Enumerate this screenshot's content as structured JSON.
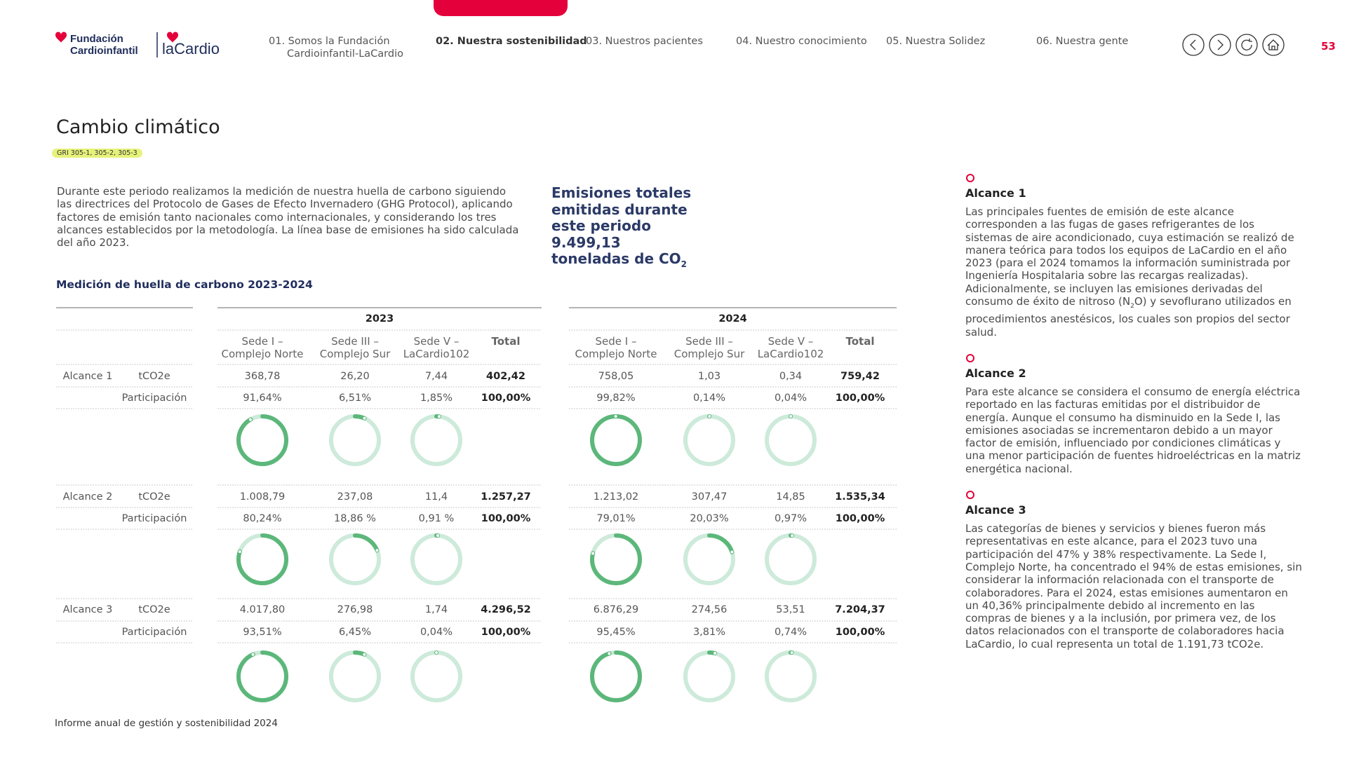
{
  "header": {
    "logo": {
      "line1": "Fundación",
      "line2": "Cardioinfantil",
      "brand": "laCardio"
    },
    "nav": [
      "01. Somos la Fundación Cardioinfantil-LaCardio",
      "02. Nuestra sostenibilidad",
      "03. Nuestros pacientes",
      "04. Nuestro conocimiento",
      "05. Nuestra Solidez",
      "06. Nuestra gente"
    ],
    "active": 1,
    "page_number": "53"
  },
  "title": "Cambio climático",
  "gri": "GRI 305-1, 305-2, 305-3",
  "intro": "Durante este periodo realizamos la medición de nuestra huella de carbono siguiendo las directrices del Protocolo de Gases de Efecto Invernadero (GHG Protocol), aplicando factores de emisión tanto nacionales como internacionales, y considerando los tres alcances establecidos por la metodología. La línea base de emisiones ha sido calculada del año 2023.",
  "highlight": {
    "text": "Emisiones totales emitidas durante este periodo 9.499,13 toneladas de CO",
    "sub": "2"
  },
  "table": {
    "title": "Medición de huella de carbono 2023-2024",
    "years": [
      "2023",
      "2024"
    ],
    "columns": [
      "Sede I – Complejo Norte",
      "Sede III – Complejo Sur",
      "Sede V – LaCardio102",
      "Total"
    ],
    "groups": [
      {
        "scope": "Alcance 1",
        "labels": [
          "tCO2e",
          "Participación"
        ],
        "emissions": [
          [
            "368,78",
            "26,20",
            "7,44",
            "402,42"
          ],
          [
            "758,05",
            "1,03",
            "0,34",
            "759,42"
          ]
        ],
        "shares": [
          [
            "91,64%",
            "6,51%",
            "1,85%",
            "100,00%"
          ],
          [
            "99,82%",
            "0,14%",
            "0,04%",
            "100,00%"
          ]
        ]
      },
      {
        "scope": "Alcance 2",
        "labels": [
          "tCO2e",
          "Participación"
        ],
        "emissions": [
          [
            "1.008,79",
            "237,08",
            "11,4",
            "1.257,27"
          ],
          [
            "1.213,02",
            "307,47",
            "14,85",
            "1.535,34"
          ]
        ],
        "shares": [
          [
            "80,24%",
            "18,86 %",
            "0,91 %",
            "100,00%"
          ],
          [
            "79,01%",
            "20,03%",
            "0,97%",
            "100,00%"
          ]
        ]
      },
      {
        "scope": "Alcance 3",
        "labels": [
          "tCO2e",
          "Participación"
        ],
        "emissions": [
          [
            "4.017,80",
            "276,98",
            "1,74",
            "4.296,52"
          ],
          [
            "6.876,29",
            "274,56",
            "53,51",
            "7.204,37"
          ]
        ],
        "shares": [
          [
            "93,51%",
            "6,45%",
            "0,04%",
            "100,00%"
          ],
          [
            "95,45%",
            "3,81%",
            "0,74%",
            "100,00%"
          ]
        ]
      }
    ]
  },
  "scopes": [
    {
      "title": "Alcance 1",
      "before": "Las principales fuentes de emisión de este alcance corresponden a las fugas de gases refrigerantes de los sistemas de aire acondicionado, cuya estimación se realizó de manera teórica para todos los equipos de LaCardio en el año 2023 (para el 2024 tomamos la información suministrada por Ingeniería Hospitalaria sobre las recargas realizadas). Adicionalmente, se incluyen las emisiones derivadas del consumo de éxito de nitroso (N",
      "sub": "2",
      "after": "O) y sevoflurano utilizados en procedimientos anestésicos, los cuales son propios del sector salud."
    },
    {
      "title": "Alcance 2",
      "before": "Para este alcance se considera el consumo de energía eléctrica reportado en las facturas emitidas por el distribuidor de energía. Aunque el consumo ha disminuido en la Sede I, las emisiones asociadas se incrementaron debido a un mayor factor de emisión, influenciado por condiciones climáticas y una menor participación de fuentes hidroeléctricas en la matriz energética nacional."
    },
    {
      "title": "Alcance 3",
      "before": "Las categorías de bienes y servicios y bienes fueron más representativas en este alcance, para el 2023 tuvo una participación del 47% y 38% respectivamente. La Sede I, Complejo Norte, ha concentrado el 94% de estas emisiones, sin considerar la información relacionada con el transporte de colaboradores. Para el 2024, estas emisiones aumentaron en un 40,36% principalmente debido al incremento en las compras de bienes y a la inclusión, por primera vez, de los datos relacionados con el transporte de colaboradores hacia LaCardio, lo cual representa un total de 1.191,73 tCO2e."
    }
  ],
  "footer": "Informe anual de gestión y sostenibilidad 2024"
}
